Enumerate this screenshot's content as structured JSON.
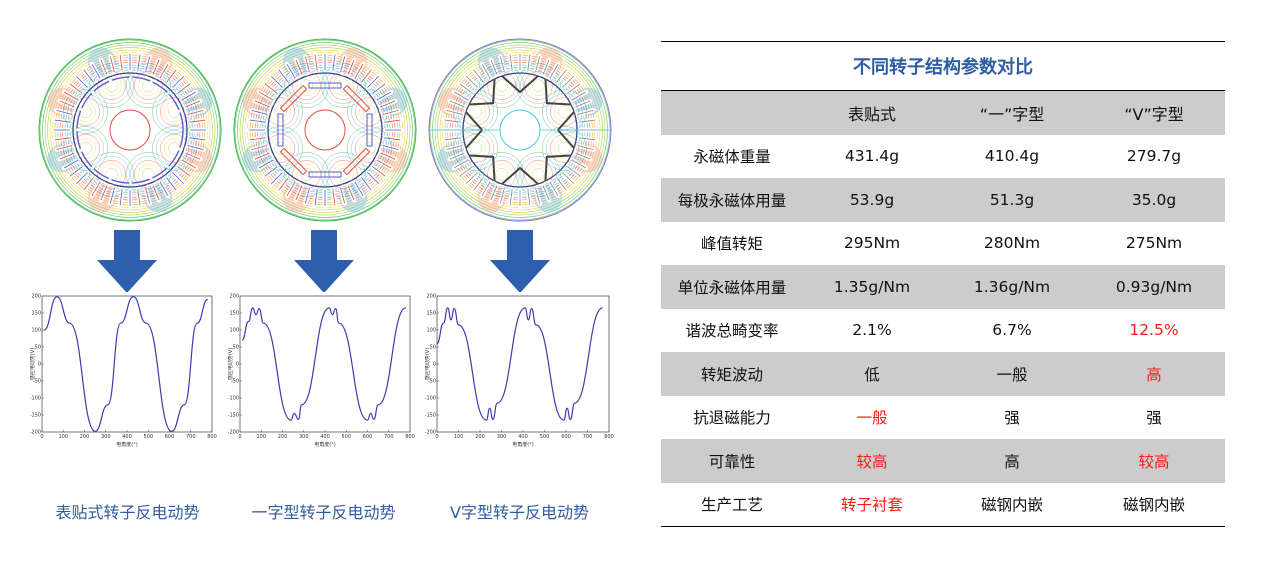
{
  "left_panel": {
    "columns": [
      {
        "id": "surface",
        "caption": "表贴式转子反电动势",
        "motor_label": "surface-mounted rotor flux map"
      },
      {
        "id": "i-type",
        "caption": "一字型转子反电动势",
        "motor_label": "I-type rotor flux map"
      },
      {
        "id": "v-type",
        "caption": "V字型转子反电动势",
        "motor_label": "V-type rotor flux map"
      }
    ],
    "arrow_color": "#2e5fae",
    "caption_color": "#2f5d9e"
  },
  "chart_data": [
    {
      "type": "line",
      "title": "表贴式转子反电动势",
      "xlabel": "电角度(°)",
      "ylabel": "感应电动势(V)",
      "xlim": [
        0,
        800
      ],
      "ylim": [
        -200,
        200
      ],
      "xticks": [
        0,
        100,
        200,
        300,
        400,
        500,
        600,
        700,
        800
      ],
      "yticks": [
        200,
        150,
        100,
        50,
        0,
        -50,
        -100,
        -150,
        -200
      ],
      "series": [
        {
          "name": "back-EMF",
          "color": "#3b3bb0",
          "x": [
            10,
            70,
            130,
            250,
            310,
            370,
            430,
            490,
            610,
            670,
            730,
            780
          ],
          "y": [
            100,
            198,
            120,
            -198,
            -120,
            120,
            198,
            120,
            -198,
            -120,
            120,
            190
          ]
        }
      ]
    },
    {
      "type": "line",
      "title": "一字型转子反电动势",
      "xlabel": "电角度(°)",
      "ylabel": "感应电动势(V)",
      "xlim": [
        0,
        800
      ],
      "ylim": [
        -200,
        200
      ],
      "xticks": [
        0,
        100,
        200,
        300,
        400,
        500,
        600,
        700,
        800
      ],
      "yticks": [
        200,
        150,
        100,
        50,
        0,
        -50,
        -100,
        -150,
        -200
      ],
      "series": [
        {
          "name": "back-EMF",
          "color": "#3b3bb0",
          "x": [
            10,
            40,
            60,
            75,
            90,
            110,
            240,
            255,
            275,
            290,
            420,
            435,
            450,
            465,
            600,
            615,
            630,
            650,
            780
          ],
          "y": [
            70,
            125,
            165,
            145,
            163,
            120,
            -165,
            -145,
            -163,
            -120,
            165,
            145,
            163,
            120,
            -165,
            -145,
            -163,
            -120,
            165
          ]
        }
      ]
    },
    {
      "type": "line",
      "title": "V字型转子反电动势",
      "xlabel": "电角度(°)",
      "ylabel": "感应电动势(V)",
      "xlim": [
        0,
        800
      ],
      "ylim": [
        -200,
        200
      ],
      "xticks": [
        0,
        100,
        200,
        300,
        400,
        500,
        600,
        700,
        800
      ],
      "yticks": [
        200,
        150,
        100,
        50,
        0,
        -50,
        -100,
        -150,
        -200
      ],
      "series": [
        {
          "name": "back-EMF",
          "color": "#3b3bb0",
          "x": [
            0,
            30,
            50,
            65,
            80,
            100,
            230,
            245,
            260,
            280,
            410,
            425,
            440,
            460,
            590,
            605,
            620,
            640,
            770
          ],
          "y": [
            60,
            120,
            165,
            130,
            163,
            115,
            -165,
            -130,
            -163,
            -115,
            165,
            130,
            163,
            115,
            -165,
            -130,
            -163,
            -115,
            165
          ]
        }
      ]
    }
  ],
  "table": {
    "title": "不同转子结构参数对比",
    "headers": [
      "",
      "表贴式",
      "“一”字型",
      "“V”字型"
    ],
    "rows": [
      {
        "label": "永磁体重量",
        "values": [
          "431.4g",
          "410.4g",
          "279.7g"
        ],
        "red": [
          false,
          false,
          false
        ]
      },
      {
        "label": "每极永磁体用量",
        "values": [
          "53.9g",
          "51.3g",
          "35.0g"
        ],
        "red": [
          false,
          false,
          false
        ]
      },
      {
        "label": "峰值转矩",
        "values": [
          "295Nm",
          "280Nm",
          "275Nm"
        ],
        "red": [
          false,
          false,
          false
        ]
      },
      {
        "label": "单位永磁体用量",
        "values": [
          "1.35g/Nm",
          "1.36g/Nm",
          "0.93g/Nm"
        ],
        "red": [
          false,
          false,
          false
        ]
      },
      {
        "label": "谐波总畸变率",
        "values": [
          "2.1%",
          "6.7%",
          "12.5%"
        ],
        "red": [
          false,
          false,
          true
        ]
      },
      {
        "label": "转矩波动",
        "values": [
          "低",
          "一般",
          "高"
        ],
        "red": [
          false,
          false,
          true
        ]
      },
      {
        "label": "抗退磁能力",
        "values": [
          "一般",
          "强",
          "强"
        ],
        "red": [
          true,
          false,
          false
        ]
      },
      {
        "label": "可靠性",
        "values": [
          "较高",
          "高",
          "较高"
        ],
        "red": [
          true,
          false,
          true
        ]
      },
      {
        "label": "生产工艺",
        "values": [
          "转子衬套",
          "磁钢内嵌",
          "磁钢内嵌"
        ],
        "red": [
          true,
          false,
          false
        ]
      }
    ],
    "title_color": "#2f5d9e",
    "shade_color": "#cccccc",
    "highlight_color": "#ff1a1a"
  }
}
